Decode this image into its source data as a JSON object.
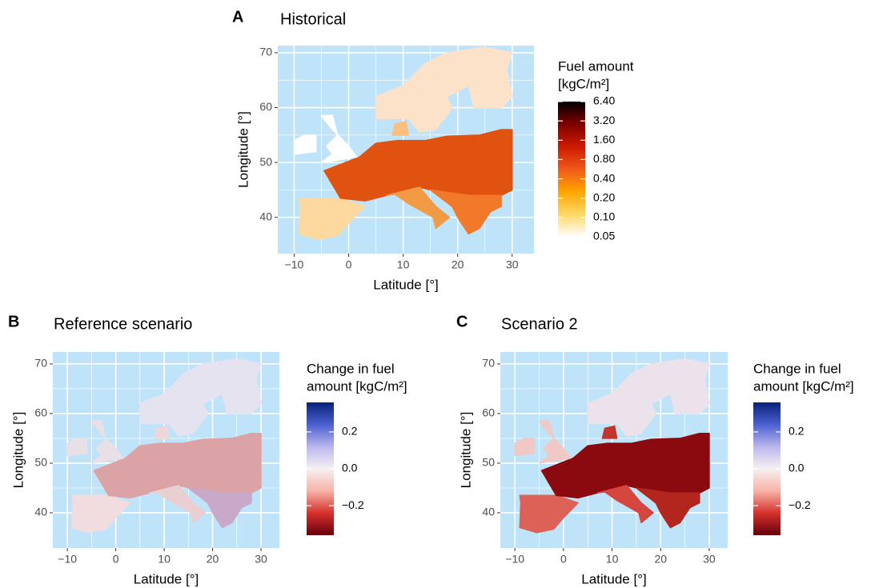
{
  "chart_data": [
    {
      "type": "map",
      "panel": "A",
      "title": "Historical",
      "xlabel": "Latitude [°]",
      "ylabel": "Longitude [°]",
      "xlim": [
        -13,
        34
      ],
      "ylim": [
        33.4,
        71.3
      ],
      "xticks": [
        {
          "value": -10,
          "label": "−10"
        },
        0,
        10,
        20,
        30
      ],
      "yticks": [
        40,
        50,
        60,
        70
      ],
      "grid": true,
      "colorbar": {
        "title": [
          "Fuel amount",
          "[kgC/m²]"
        ],
        "log": true,
        "lim": [
          0.05,
          6.4
        ],
        "ticks": [
          0.05,
          {
            "value": 0.1,
            "label": "0.10"
          },
          {
            "value": 0.2,
            "label": "0.20"
          },
          {
            "value": 0.4,
            "label": "0.40"
          },
          {
            "value": 0.8,
            "label": "0.80"
          },
          {
            "value": 1.6,
            "label": "1.60"
          },
          {
            "value": 3.2,
            "label": "3.20"
          },
          {
            "value": 6.4,
            "label": "6.40"
          }
        ],
        "colors": [
          "#ffffff",
          "#ffd966",
          "#ffa500",
          "#f0591a",
          "#cc1a00",
          "#800000",
          "#000000"
        ]
      }
    },
    {
      "type": "map",
      "panel": "B",
      "title": "Reference scenario",
      "xlabel": "Latitude [°]",
      "ylabel": "Longitude [°]",
      "xlim": [
        -13,
        33.8
      ],
      "ylim": [
        32.9,
        72.4
      ],
      "xticks": [
        {
          "value": -10,
          "label": "−10"
        },
        0,
        10,
        20,
        30
      ],
      "yticks": [
        40,
        50,
        60,
        70
      ],
      "grid": true,
      "colorbar": {
        "title": [
          "Change in fuel",
          "amount [kgC/m²]"
        ],
        "log": false,
        "lim": [
          -0.36,
          0.36
        ],
        "ticks": [
          {
            "value": -0.2,
            "label": "−0.2"
          },
          {
            "value": 0,
            "label": "0.0"
          },
          0.2
        ],
        "colors": [
          "#67000d",
          "#d6312b",
          "#f7b2a8",
          "#f7f0f0",
          "#b9b7ee",
          "#4c5fd0",
          "#08217a"
        ]
      }
    },
    {
      "type": "map",
      "panel": "C",
      "title": "Scenario 2",
      "xlabel": "Latitude [°]",
      "ylabel": "Longitude [°]",
      "xlim": [
        -13,
        33.8
      ],
      "ylim": [
        32.9,
        72.4
      ],
      "xticks": [
        {
          "value": -10,
          "label": "−10"
        },
        0,
        10,
        20,
        30
      ],
      "yticks": [
        40,
        50,
        60,
        70
      ],
      "grid": true,
      "colorbar": {
        "title": [
          "Change in fuel",
          "amount [kgC/m²]"
        ],
        "log": false,
        "lim": [
          -0.36,
          0.36
        ],
        "ticks": [
          {
            "value": -0.2,
            "label": "−0.2"
          },
          {
            "value": 0,
            "label": "0.0"
          },
          0.2
        ],
        "colors": [
          "#67000d",
          "#d6312b",
          "#f7b2a8",
          "#f7f0f0",
          "#b9b7ee",
          "#4c5fd0",
          "#08217a"
        ]
      }
    }
  ]
}
